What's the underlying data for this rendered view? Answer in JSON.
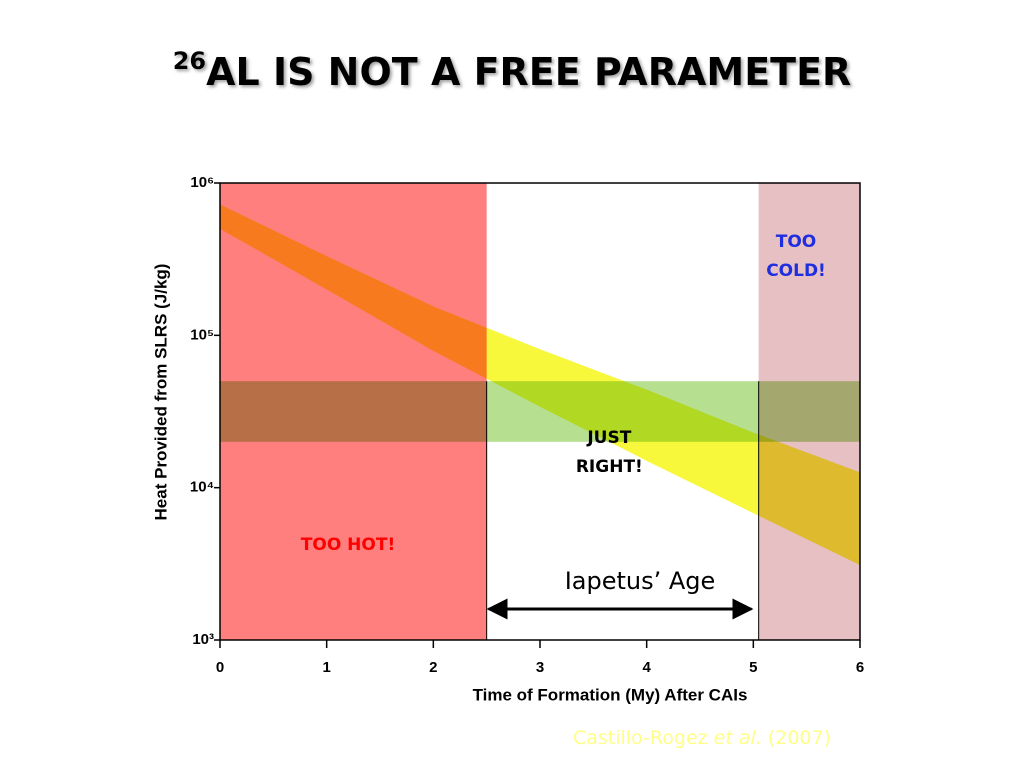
{
  "chart_data": {
    "type": "band",
    "title_superscript": "26",
    "title": "AL IS NOT A FREE PARAMETER",
    "x_label": "Time of Formation (My) After CAIs",
    "y_label": "Heat Provided from SLRS (J/kg)",
    "xlim": [
      0,
      6
    ],
    "xticks": [
      0,
      1,
      2,
      3,
      4,
      5,
      6
    ],
    "ylim": [
      1000,
      1000000
    ],
    "yscale": "log",
    "yticks": [
      {
        "value": 1000,
        "label": "10³"
      },
      {
        "value": 10000,
        "label": "10⁴"
      },
      {
        "value": 100000,
        "label": "10⁵"
      },
      {
        "value": 1000000,
        "label": "10⁶"
      }
    ],
    "band": {
      "color": "#f7f73c",
      "x": [
        0,
        1,
        2,
        3,
        4,
        5,
        6
      ],
      "upper": [
        724000,
        331000,
        155000,
        81000,
        44000,
        23000,
        12600
      ],
      "lower": [
        500000,
        200000,
        79000,
        34000,
        15000,
        6800,
        3100
      ]
    },
    "regions": [
      {
        "label": [
          "TOO HOT!"
        ],
        "x": [
          0,
          2.5
        ],
        "color": "#ff7f7f",
        "label_color": "#ff0000"
      },
      {
        "label": [
          "TOO",
          "COLD!"
        ],
        "x": [
          5.05,
          6
        ],
        "color": "#e6c0c2",
        "label_color": "#1f2ee0"
      }
    ],
    "constraint": {
      "label": [
        "JUST",
        "RIGHT!"
      ],
      "y": [
        20000,
        50000
      ],
      "color": "#9fd46a"
    },
    "arrow": {
      "label": "Iapetus’ Age",
      "x": [
        2.5,
        5
      ]
    },
    "citation": [
      "Castillo-Rogez ",
      "et al.",
      " (2007)"
    ]
  }
}
